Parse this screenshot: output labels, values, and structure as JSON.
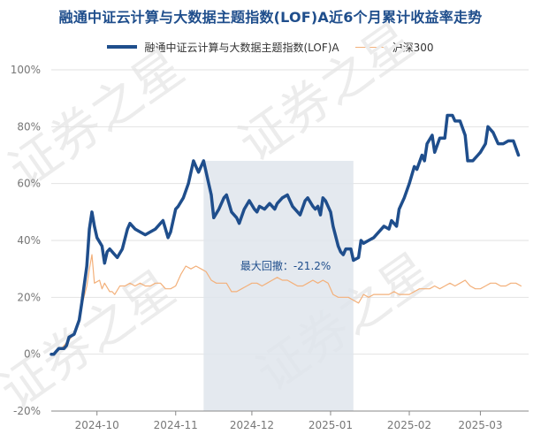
{
  "chart_data": {
    "type": "line",
    "title": "融通中证云计算与大数据主题指数(LOF)A近6个月累计收益率走势",
    "ylim": [
      -20,
      100
    ],
    "yticks": [
      -20,
      0,
      20,
      40,
      60,
      80,
      100
    ],
    "ytick_labels": [
      "-20%",
      "0%",
      "20%",
      "40%",
      "60%",
      "80%",
      "100%"
    ],
    "xtick_labels": [
      "2024-10",
      "2024-11",
      "2024-12",
      "2025-01",
      "2025-02",
      "2025-03"
    ],
    "x_start": "2024-09-13",
    "x_end": "2025-03-20",
    "x_tick_dates": [
      "2024-10-01",
      "2024-11-01",
      "2024-12-01",
      "2025-01-01",
      "2025-02-01",
      "2025-03-01"
    ],
    "grid": "horizontal",
    "legend_placement": "top",
    "series": [
      {
        "name": "融通中证云计算与大数据主题指数(LOF)A",
        "color": "#1f4e8c",
        "points": [
          [
            "2024-09-13",
            0
          ],
          [
            "2024-09-14",
            0
          ],
          [
            "2024-09-15",
            1
          ],
          [
            "2024-09-16",
            2
          ],
          [
            "2024-09-18",
            2
          ],
          [
            "2024-09-19",
            3
          ],
          [
            "2024-09-20",
            6
          ],
          [
            "2024-09-22",
            7
          ],
          [
            "2024-09-24",
            12
          ],
          [
            "2024-09-25",
            18
          ],
          [
            "2024-09-27",
            31
          ],
          [
            "2024-09-28",
            44
          ],
          [
            "2024-09-29",
            50
          ],
          [
            "2024-09-30",
            45
          ],
          [
            "2024-10-01",
            41
          ],
          [
            "2024-10-03",
            38
          ],
          [
            "2024-10-04",
            32
          ],
          [
            "2024-10-05",
            36
          ],
          [
            "2024-10-06",
            37
          ],
          [
            "2024-10-08",
            35
          ],
          [
            "2024-10-09",
            34
          ],
          [
            "2024-10-11",
            37
          ],
          [
            "2024-10-13",
            44
          ],
          [
            "2024-10-14",
            46
          ],
          [
            "2024-10-16",
            44
          ],
          [
            "2024-10-18",
            43
          ],
          [
            "2024-10-20",
            42
          ],
          [
            "2024-10-22",
            43
          ],
          [
            "2024-10-24",
            44
          ],
          [
            "2024-10-26",
            46
          ],
          [
            "2024-10-27",
            47
          ],
          [
            "2024-10-29",
            41
          ],
          [
            "2024-10-30",
            43
          ],
          [
            "2024-11-01",
            51
          ],
          [
            "2024-11-02",
            52
          ],
          [
            "2024-11-04",
            55
          ],
          [
            "2024-11-06",
            60
          ],
          [
            "2024-11-08",
            68
          ],
          [
            "2024-11-09",
            66
          ],
          [
            "2024-11-10",
            64
          ],
          [
            "2024-11-12",
            68
          ],
          [
            "2024-11-14",
            60
          ],
          [
            "2024-11-15",
            56
          ],
          [
            "2024-11-16",
            48
          ],
          [
            "2024-11-18",
            51
          ],
          [
            "2024-11-20",
            55
          ],
          [
            "2024-11-21",
            56
          ],
          [
            "2024-11-23",
            50
          ],
          [
            "2024-11-25",
            48
          ],
          [
            "2024-11-26",
            46
          ],
          [
            "2024-11-28",
            51
          ],
          [
            "2024-11-30",
            54
          ],
          [
            "2024-12-02",
            51
          ],
          [
            "2024-12-03",
            50
          ],
          [
            "2024-12-04",
            52
          ],
          [
            "2024-12-06",
            51
          ],
          [
            "2024-12-08",
            53
          ],
          [
            "2024-12-10",
            51
          ],
          [
            "2024-12-11",
            53
          ],
          [
            "2024-12-13",
            55
          ],
          [
            "2024-12-15",
            56
          ],
          [
            "2024-12-17",
            52
          ],
          [
            "2024-12-19",
            50
          ],
          [
            "2024-12-20",
            49
          ],
          [
            "2024-12-22",
            54
          ],
          [
            "2024-12-23",
            55
          ],
          [
            "2024-12-25",
            52
          ],
          [
            "2024-12-26",
            51
          ],
          [
            "2024-12-27",
            52
          ],
          [
            "2024-12-28",
            49
          ],
          [
            "2024-12-29",
            55
          ],
          [
            "2024-12-30",
            54
          ],
          [
            "2025-01-01",
            50
          ],
          [
            "2025-01-02",
            45
          ],
          [
            "2025-01-04",
            38
          ],
          [
            "2025-01-05",
            36
          ],
          [
            "2025-01-06",
            35
          ],
          [
            "2025-01-07",
            37
          ],
          [
            "2025-01-09",
            37
          ],
          [
            "2025-01-10",
            33
          ],
          [
            "2025-01-12",
            34
          ],
          [
            "2025-01-13",
            40
          ],
          [
            "2025-01-14",
            39
          ],
          [
            "2025-01-16",
            40
          ],
          [
            "2025-01-18",
            41
          ],
          [
            "2025-01-20",
            43
          ],
          [
            "2025-01-22",
            45
          ],
          [
            "2025-01-24",
            44
          ],
          [
            "2025-01-25",
            47
          ],
          [
            "2025-01-27",
            45
          ],
          [
            "2025-01-28",
            51
          ],
          [
            "2025-01-30",
            55
          ],
          [
            "2025-02-01",
            60
          ],
          [
            "2025-02-03",
            66
          ],
          [
            "2025-02-04",
            65
          ],
          [
            "2025-02-06",
            70
          ],
          [
            "2025-02-07",
            68
          ],
          [
            "2025-02-08",
            74
          ],
          [
            "2025-02-10",
            77
          ],
          [
            "2025-02-11",
            71
          ],
          [
            "2025-02-13",
            76
          ],
          [
            "2025-02-15",
            76
          ],
          [
            "2025-02-16",
            84
          ],
          [
            "2025-02-18",
            84
          ],
          [
            "2025-02-19",
            82
          ],
          [
            "2025-02-21",
            82
          ],
          [
            "2025-02-23",
            77
          ],
          [
            "2025-02-24",
            68
          ],
          [
            "2025-02-26",
            68
          ],
          [
            "2025-02-28",
            70
          ],
          [
            "2025-03-01",
            71
          ],
          [
            "2025-03-03",
            74
          ],
          [
            "2025-03-04",
            80
          ],
          [
            "2025-03-06",
            78
          ],
          [
            "2025-03-08",
            74
          ],
          [
            "2025-03-10",
            74
          ],
          [
            "2025-03-12",
            75
          ],
          [
            "2025-03-14",
            75
          ],
          [
            "2025-03-16",
            70
          ]
        ]
      },
      {
        "name": "沪深300",
        "color": "#f3b07a",
        "points": [
          [
            "2024-09-13",
            0
          ],
          [
            "2024-09-15",
            1
          ],
          [
            "2024-09-17",
            2
          ],
          [
            "2024-09-19",
            4
          ],
          [
            "2024-09-21",
            6
          ],
          [
            "2024-09-23",
            9
          ],
          [
            "2024-09-25",
            17
          ],
          [
            "2024-09-27",
            24
          ],
          [
            "2024-09-28",
            30
          ],
          [
            "2024-09-29",
            35
          ],
          [
            "2024-09-30",
            25
          ],
          [
            "2024-10-02",
            26
          ],
          [
            "2024-10-03",
            23
          ],
          [
            "2024-10-04",
            25
          ],
          [
            "2024-10-06",
            22
          ],
          [
            "2024-10-07",
            22
          ],
          [
            "2024-10-08",
            21
          ],
          [
            "2024-10-10",
            24
          ],
          [
            "2024-10-12",
            24
          ],
          [
            "2024-10-14",
            25
          ],
          [
            "2024-10-16",
            24
          ],
          [
            "2024-10-18",
            25
          ],
          [
            "2024-10-20",
            24
          ],
          [
            "2024-10-22",
            24
          ],
          [
            "2024-10-24",
            25
          ],
          [
            "2024-10-26",
            25
          ],
          [
            "2024-10-28",
            23
          ],
          [
            "2024-10-30",
            23
          ],
          [
            "2024-11-01",
            24
          ],
          [
            "2024-11-03",
            28
          ],
          [
            "2024-11-05",
            31
          ],
          [
            "2024-11-07",
            30
          ],
          [
            "2024-11-09",
            31
          ],
          [
            "2024-11-11",
            30
          ],
          [
            "2024-11-13",
            29
          ],
          [
            "2024-11-15",
            26
          ],
          [
            "2024-11-17",
            25
          ],
          [
            "2024-11-19",
            25
          ],
          [
            "2024-11-21",
            25
          ],
          [
            "2024-11-23",
            22
          ],
          [
            "2024-11-25",
            22
          ],
          [
            "2024-11-27",
            23
          ],
          [
            "2024-11-29",
            24
          ],
          [
            "2024-12-01",
            25
          ],
          [
            "2024-12-03",
            25
          ],
          [
            "2024-12-05",
            24
          ],
          [
            "2024-12-07",
            25
          ],
          [
            "2024-12-09",
            26
          ],
          [
            "2024-12-11",
            27
          ],
          [
            "2024-12-13",
            26
          ],
          [
            "2024-12-15",
            26
          ],
          [
            "2024-12-17",
            25
          ],
          [
            "2024-12-19",
            24
          ],
          [
            "2024-12-21",
            24
          ],
          [
            "2024-12-23",
            25
          ],
          [
            "2024-12-25",
            26
          ],
          [
            "2024-12-27",
            25
          ],
          [
            "2024-12-29",
            26
          ],
          [
            "2024-12-31",
            25
          ],
          [
            "2025-01-02",
            21
          ],
          [
            "2025-01-04",
            20
          ],
          [
            "2025-01-06",
            20
          ],
          [
            "2025-01-08",
            20
          ],
          [
            "2025-01-10",
            19
          ],
          [
            "2025-01-12",
            18
          ],
          [
            "2025-01-14",
            21
          ],
          [
            "2025-01-16",
            20
          ],
          [
            "2025-01-18",
            21
          ],
          [
            "2025-01-20",
            21
          ],
          [
            "2025-01-22",
            21
          ],
          [
            "2025-01-24",
            21
          ],
          [
            "2025-01-26",
            22
          ],
          [
            "2025-01-28",
            21
          ],
          [
            "2025-01-30",
            21
          ],
          [
            "2025-02-01",
            21
          ],
          [
            "2025-02-03",
            22
          ],
          [
            "2025-02-05",
            23
          ],
          [
            "2025-02-07",
            23
          ],
          [
            "2025-02-09",
            23
          ],
          [
            "2025-02-11",
            24
          ],
          [
            "2025-02-13",
            23
          ],
          [
            "2025-02-15",
            24
          ],
          [
            "2025-02-17",
            25
          ],
          [
            "2025-02-19",
            24
          ],
          [
            "2025-02-21",
            25
          ],
          [
            "2025-02-23",
            26
          ],
          [
            "2025-02-25",
            24
          ],
          [
            "2025-02-27",
            23
          ],
          [
            "2025-03-01",
            23
          ],
          [
            "2025-03-03",
            24
          ],
          [
            "2025-03-05",
            25
          ],
          [
            "2025-03-07",
            25
          ],
          [
            "2025-03-09",
            24
          ],
          [
            "2025-03-11",
            24
          ],
          [
            "2025-03-13",
            25
          ],
          [
            "2025-03-15",
            25
          ],
          [
            "2025-03-17",
            24
          ]
        ]
      }
    ],
    "annotations": [
      {
        "type": "shaded_region",
        "label": "最大回撤：-21.2%",
        "x_from": "2024-11-12",
        "x_to": "2025-01-10",
        "color": "#dfe5ec",
        "label_color": "#1f4e8c"
      }
    ],
    "watermark": {
      "text": "证券之星",
      "color": "#ececec"
    }
  }
}
